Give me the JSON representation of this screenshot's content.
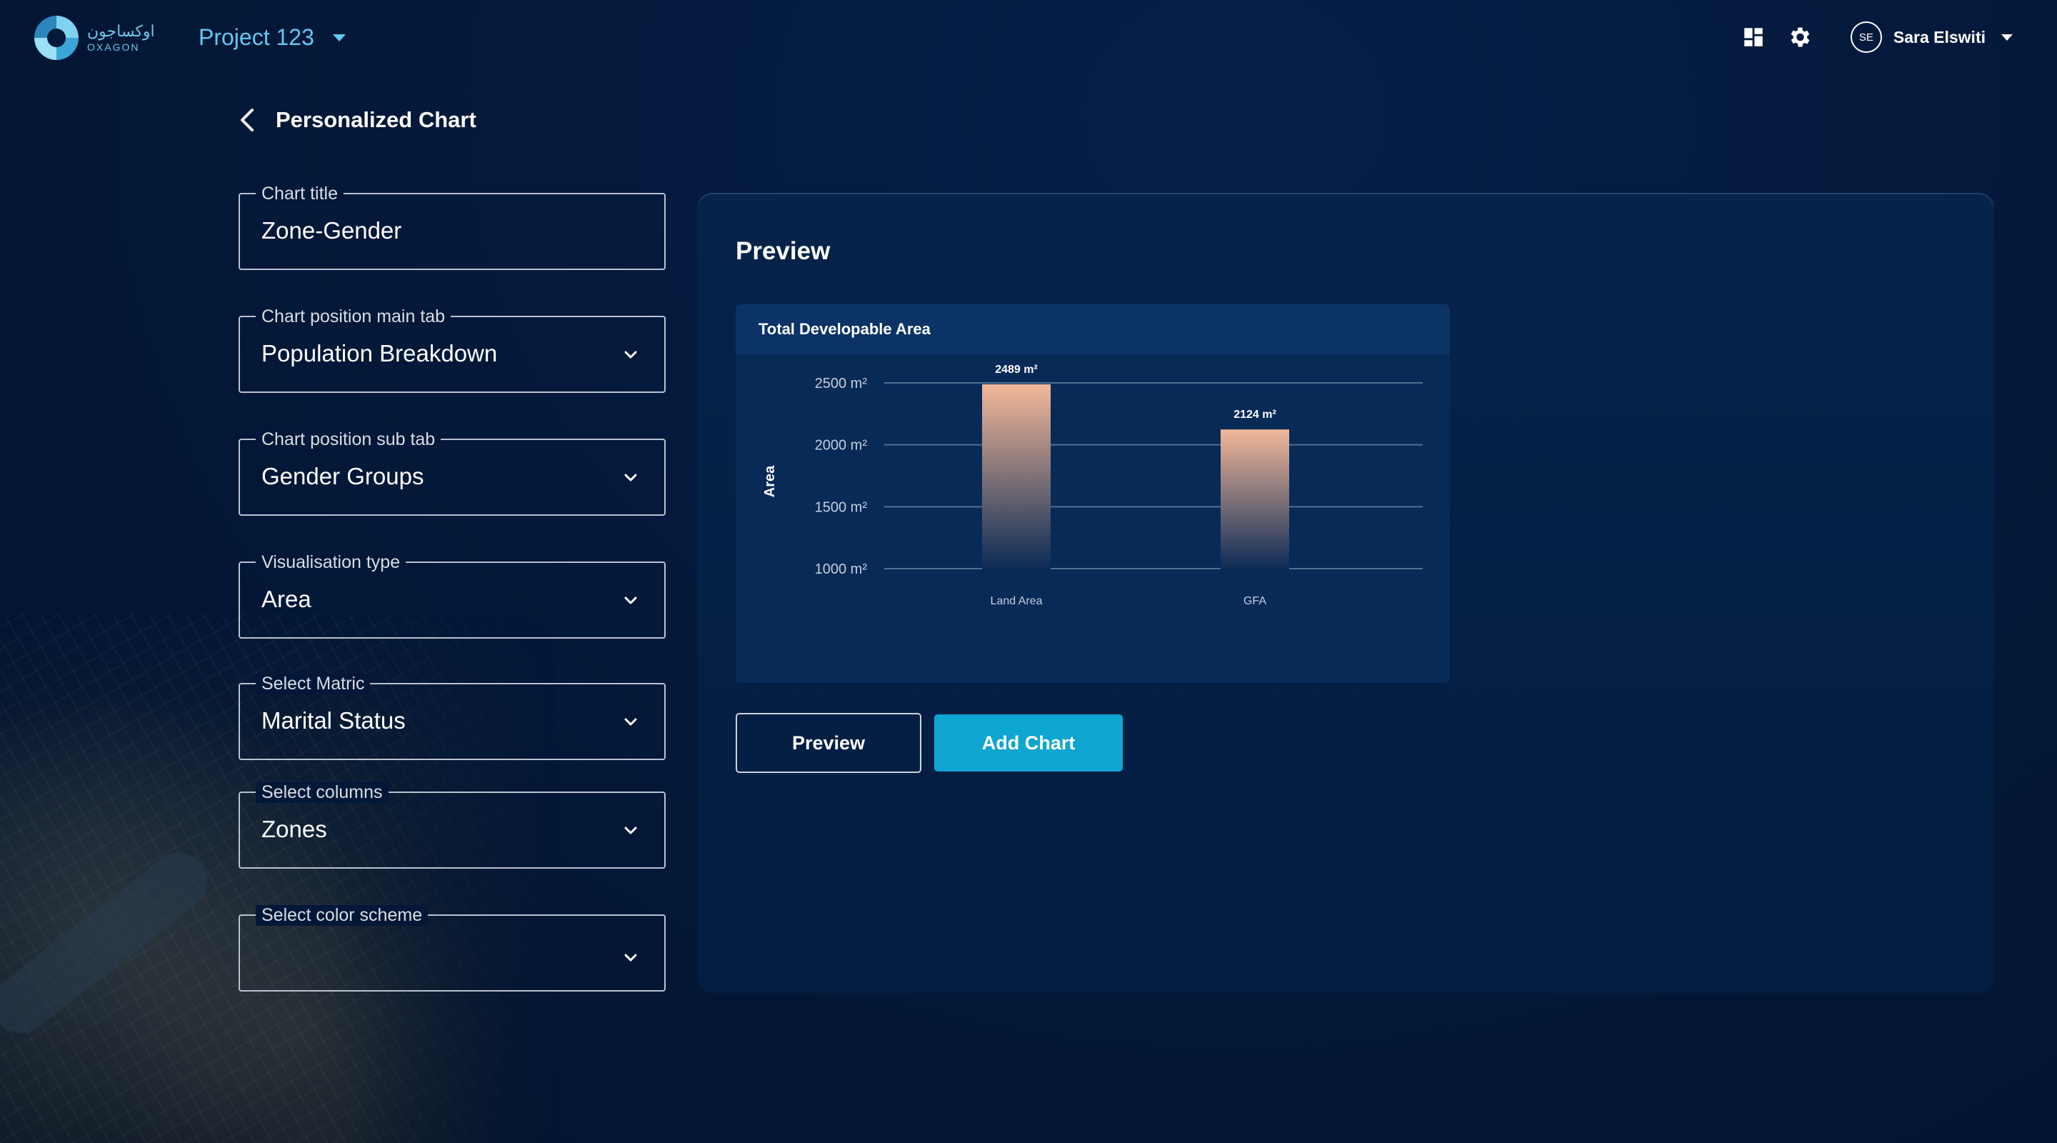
{
  "app": {
    "logo_ar": "اوكساجون",
    "logo_en": "OXAGON",
    "project_name": "Project 123"
  },
  "user": {
    "initials": "SE",
    "name": "Sara Elswiti"
  },
  "page": {
    "title": "Personalized Chart"
  },
  "form": {
    "chart_title": {
      "label": "Chart title",
      "value": "Zone-Gender"
    },
    "main_tab": {
      "label": "Chart position main tab",
      "value": "Population Breakdown"
    },
    "sub_tab": {
      "label": "Chart position sub tab",
      "value": "Gender Groups"
    },
    "vis_type": {
      "label": "Visualisation type",
      "value": "Area"
    },
    "matric": {
      "label": "Select Matric",
      "value": "Marital Status"
    },
    "columns": {
      "label": "Select columns",
      "value": "Zones"
    },
    "color_scheme": {
      "label": "Select color scheme",
      "value": ""
    }
  },
  "preview": {
    "title": "Preview",
    "preview_button": "Preview",
    "add_button": "Add Chart"
  },
  "colors": {
    "accent": "#0ea5d0",
    "bar_top": "#f2b89a",
    "bar_bottom": "#0a2a55"
  },
  "chart_data": {
    "type": "bar",
    "title": "Total Developable Area",
    "categories": [
      "Land Area",
      "GFA"
    ],
    "values": [
      2489,
      2124
    ],
    "value_labels": [
      "2489 m²",
      "2124 m²"
    ],
    "ylabel": "Area",
    "xlabel": "",
    "yticks": [
      1000,
      1500,
      2000,
      2500
    ],
    "ytick_labels": [
      "1000 m²",
      "1500 m²",
      "2000 m²",
      "2500 m²"
    ],
    "ylim": [
      1000,
      2500
    ],
    "grid": true
  }
}
